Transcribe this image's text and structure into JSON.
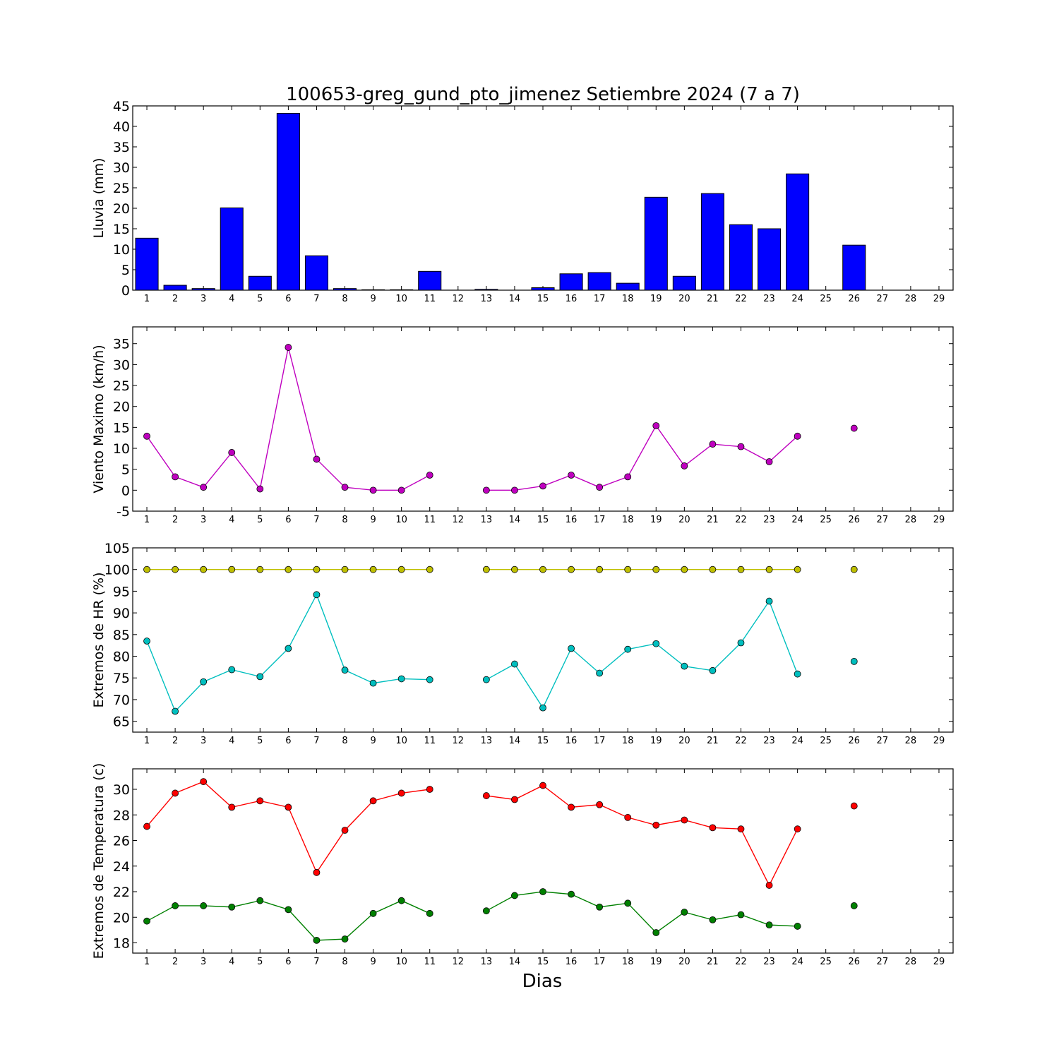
{
  "title": "100653-greg_gund_pto_jimenez Setiembre 2024  (7 a 7)",
  "xlabel": "Dias",
  "days": [
    1,
    2,
    3,
    4,
    5,
    6,
    7,
    8,
    9,
    10,
    11,
    12,
    13,
    14,
    15,
    16,
    17,
    18,
    19,
    20,
    21,
    22,
    23,
    24,
    25,
    26,
    27,
    28,
    29
  ],
  "chart_data": [
    {
      "type": "bar",
      "ylabel": "Lluvia (mm)",
      "ylim": [
        0,
        45
      ],
      "yticks": [
        0,
        5,
        10,
        15,
        20,
        25,
        30,
        35,
        40,
        45
      ],
      "xlim": [
        0.5,
        29.5
      ],
      "grid": false,
      "series": [
        {
          "color": "#0000ff",
          "x": [
            1,
            2,
            3,
            4,
            5,
            6,
            7,
            8,
            9,
            10,
            11,
            12,
            13,
            14,
            15,
            16,
            17,
            18,
            19,
            20,
            21,
            22,
            23,
            24,
            25,
            26,
            27,
            28,
            29
          ],
          "values": [
            12.7,
            1.2,
            0.4,
            20.1,
            3.4,
            43.2,
            8.4,
            0.4,
            0.1,
            0.1,
            4.6,
            0.0,
            0.2,
            0.0,
            0.6,
            4.0,
            4.3,
            1.7,
            22.7,
            3.4,
            23.6,
            16.0,
            15.0,
            28.4,
            0.0,
            11.0,
            0.0,
            0.0,
            0.0
          ]
        }
      ]
    },
    {
      "type": "line",
      "ylabel": "Viento Maximo (km/h)",
      "ylim": [
        -5,
        39
      ],
      "yticks": [
        -5,
        0,
        5,
        10,
        15,
        20,
        25,
        30,
        35
      ],
      "xlim": [
        0.5,
        29.5
      ],
      "grid": false,
      "series": [
        {
          "color": "#bf00bf",
          "x": [
            1,
            2,
            3,
            4,
            5,
            6,
            7,
            8,
            9,
            10,
            11,
            12,
            13,
            14,
            15,
            16,
            17,
            18,
            19,
            20,
            21,
            22,
            23,
            24,
            25,
            26
          ],
          "values": [
            12.9,
            3.2,
            0.7,
            9.0,
            0.3,
            34.1,
            7.4,
            0.7,
            0.0,
            0.0,
            3.6,
            null,
            0.0,
            0.0,
            1.0,
            3.6,
            0.7,
            3.2,
            15.4,
            5.8,
            11.0,
            10.4,
            6.8,
            12.9,
            null,
            14.8
          ]
        }
      ]
    },
    {
      "type": "line",
      "ylabel": "Extremos de HR (%)",
      "ylim": [
        62.5,
        105
      ],
      "yticks": [
        65,
        70,
        75,
        80,
        85,
        90,
        95,
        100,
        105
      ],
      "xlim": [
        0.5,
        29.5
      ],
      "grid": false,
      "series": [
        {
          "color": "#bfbf00",
          "x": [
            1,
            2,
            3,
            4,
            5,
            6,
            7,
            8,
            9,
            10,
            11,
            12,
            13,
            14,
            15,
            16,
            17,
            18,
            19,
            20,
            21,
            22,
            23,
            24,
            25,
            26
          ],
          "values": [
            100,
            100,
            100,
            100,
            100,
            100,
            100,
            100,
            100,
            100,
            100,
            null,
            100,
            100,
            100,
            100,
            100,
            100,
            100,
            100,
            100,
            100,
            100,
            100,
            null,
            100
          ]
        },
        {
          "color": "#00bfbf",
          "x": [
            1,
            2,
            3,
            4,
            5,
            6,
            7,
            8,
            9,
            10,
            11,
            12,
            13,
            14,
            15,
            16,
            17,
            18,
            19,
            20,
            21,
            22,
            23,
            24,
            25,
            26
          ],
          "values": [
            83.5,
            67.3,
            74.1,
            76.9,
            75.3,
            81.8,
            94.2,
            76.8,
            73.8,
            74.8,
            74.6,
            null,
            74.6,
            78.2,
            68.1,
            81.8,
            76.1,
            81.6,
            82.9,
            77.7,
            76.7,
            83.1,
            92.7,
            75.9,
            null,
            78.8
          ]
        }
      ]
    },
    {
      "type": "line",
      "ylabel": "Extremos de Temperatura (c)",
      "ylim": [
        17.2,
        31.6
      ],
      "yticks": [
        18,
        20,
        22,
        24,
        26,
        28,
        30
      ],
      "xlim": [
        0.5,
        29.5
      ],
      "grid": false,
      "series": [
        {
          "color": "#ff0000",
          "x": [
            1,
            2,
            3,
            4,
            5,
            6,
            7,
            8,
            9,
            10,
            11,
            12,
            13,
            14,
            15,
            16,
            17,
            18,
            19,
            20,
            21,
            22,
            23,
            24,
            25,
            26
          ],
          "values": [
            27.1,
            29.7,
            30.6,
            28.6,
            29.1,
            28.6,
            23.5,
            26.8,
            29.1,
            29.7,
            30.0,
            null,
            29.5,
            29.2,
            30.3,
            28.6,
            28.8,
            27.8,
            27.2,
            27.6,
            27.0,
            26.9,
            22.5,
            26.9,
            null,
            28.7
          ]
        },
        {
          "color": "#008000",
          "x": [
            1,
            2,
            3,
            4,
            5,
            6,
            7,
            8,
            9,
            10,
            11,
            12,
            13,
            14,
            15,
            16,
            17,
            18,
            19,
            20,
            21,
            22,
            23,
            24,
            25,
            26
          ],
          "values": [
            19.7,
            20.9,
            20.9,
            20.8,
            21.3,
            20.6,
            18.2,
            18.3,
            20.3,
            21.3,
            20.3,
            null,
            20.5,
            21.7,
            22.0,
            21.8,
            20.8,
            21.1,
            18.8,
            20.4,
            19.8,
            20.2,
            19.4,
            19.3,
            null,
            20.9
          ]
        }
      ]
    }
  ]
}
